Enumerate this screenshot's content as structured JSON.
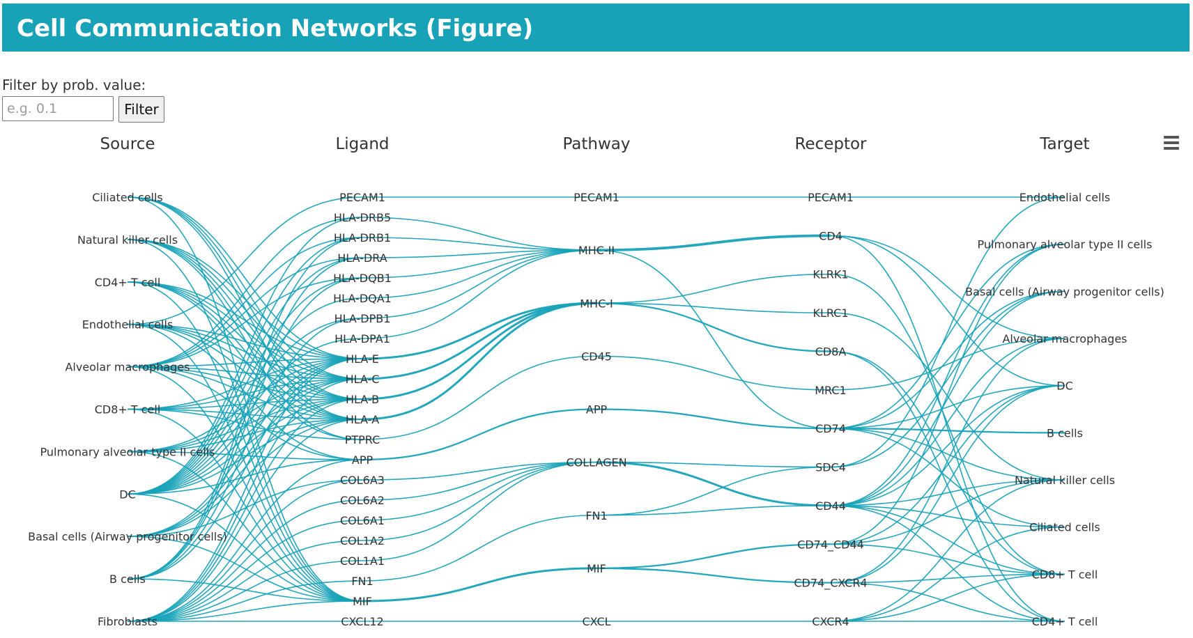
{
  "header": {
    "title": "Cell Communication Networks (Figure)"
  },
  "filter": {
    "label": "Filter by prob. value:",
    "placeholder": "e.g. 0.1",
    "value": "",
    "button_label": "Filter"
  },
  "menu": {
    "icon": "hamburger-menu-icon"
  },
  "colors": {
    "header_bg": "#17a2b8",
    "link": "#17a2b8",
    "text": "#333333"
  },
  "chart_data": {
    "type": "sankey",
    "columns": [
      "Source",
      "Ligand",
      "Pathway",
      "Receptor",
      "Target"
    ],
    "nodes": {
      "Source": [
        "Ciliated cells",
        "Natural killer cells",
        "CD4+ T cell",
        "Endothelial cells",
        "Alveolar macrophages",
        "CD8+ T cell",
        "Pulmonary alveolar type II cells",
        "DC",
        "Basal cells (Airway progenitor cells)",
        "B cells",
        "Fibroblasts"
      ],
      "Ligand": [
        "PECAM1",
        "HLA-DRB5",
        "HLA-DRB1",
        "HLA-DRA",
        "HLA-DQB1",
        "HLA-DQA1",
        "HLA-DPB1",
        "HLA-DPA1",
        "HLA-E",
        "HLA-C",
        "HLA-B",
        "HLA-A",
        "PTPRC",
        "APP",
        "COL6A3",
        "COL6A2",
        "COL6A1",
        "COL1A2",
        "COL1A1",
        "FN1",
        "MIF",
        "CXCL12"
      ],
      "Pathway": [
        "PECAM1",
        "MHC-II",
        "MHC-I",
        "CD45",
        "APP",
        "COLLAGEN",
        "FN1",
        "MIF",
        "CXCL"
      ],
      "Receptor": [
        "PECAM1",
        "CD4",
        "KLRK1",
        "KLRC1",
        "CD8A",
        "MRC1",
        "CD74",
        "SDC4",
        "CD44",
        "CD74_CD44",
        "CD74_CXCR4",
        "CXCR4"
      ],
      "Target": [
        "Endothelial cells",
        "Pulmonary alveolar type II cells",
        "Basal cells (Airway progenitor cells)",
        "Alveolar macrophages",
        "DC",
        "B cells",
        "Natural killer cells",
        "Ciliated cells",
        "CD8+ T cell",
        "CD4+ T cell"
      ]
    },
    "links": [
      [
        "Endothelial cells",
        "PECAM1",
        1
      ],
      [
        "Ciliated cells",
        "HLA-E",
        1
      ],
      [
        "Ciliated cells",
        "HLA-C",
        1
      ],
      [
        "Ciliated cells",
        "HLA-B",
        1
      ],
      [
        "Ciliated cells",
        "HLA-A",
        1
      ],
      [
        "Ciliated cells",
        "MIF",
        1
      ],
      [
        "Natural killer cells",
        "HLA-E",
        1
      ],
      [
        "Natural killer cells",
        "HLA-C",
        1
      ],
      [
        "Natural killer cells",
        "HLA-B",
        1
      ],
      [
        "Natural killer cells",
        "HLA-A",
        1
      ],
      [
        "Natural killer cells",
        "PTPRC",
        1
      ],
      [
        "Natural killer cells",
        "MIF",
        1
      ],
      [
        "CD4+ T cell",
        "HLA-E",
        1
      ],
      [
        "CD4+ T cell",
        "HLA-C",
        1
      ],
      [
        "CD4+ T cell",
        "HLA-B",
        1
      ],
      [
        "CD4+ T cell",
        "HLA-A",
        1
      ],
      [
        "CD4+ T cell",
        "PTPRC",
        1
      ],
      [
        "CD4+ T cell",
        "MIF",
        1
      ],
      [
        "Endothelial cells",
        "HLA-E",
        1
      ],
      [
        "Endothelial cells",
        "HLA-C",
        1
      ],
      [
        "Endothelial cells",
        "HLA-B",
        1
      ],
      [
        "Endothelial cells",
        "HLA-A",
        1
      ],
      [
        "Endothelial cells",
        "MIF",
        1
      ],
      [
        "Endothelial cells",
        "APP",
        1
      ],
      [
        "Alveolar macrophages",
        "HLA-DRB5",
        1
      ],
      [
        "Alveolar macrophages",
        "HLA-DRB1",
        1
      ],
      [
        "Alveolar macrophages",
        "HLA-DRA",
        1
      ],
      [
        "Alveolar macrophages",
        "HLA-DQB1",
        1
      ],
      [
        "Alveolar macrophages",
        "HLA-E",
        1
      ],
      [
        "Alveolar macrophages",
        "HLA-C",
        1
      ],
      [
        "Alveolar macrophages",
        "HLA-B",
        1
      ],
      [
        "Alveolar macrophages",
        "HLA-A",
        1
      ],
      [
        "Alveolar macrophages",
        "APP",
        1
      ],
      [
        "Alveolar macrophages",
        "MIF",
        1
      ],
      [
        "CD8+ T cell",
        "HLA-E",
        1
      ],
      [
        "CD8+ T cell",
        "HLA-C",
        1
      ],
      [
        "CD8+ T cell",
        "HLA-B",
        1
      ],
      [
        "CD8+ T cell",
        "HLA-A",
        1
      ],
      [
        "CD8+ T cell",
        "PTPRC",
        1
      ],
      [
        "CD8+ T cell",
        "MIF",
        1
      ],
      [
        "Pulmonary alveolar type II cells",
        "HLA-E",
        1
      ],
      [
        "Pulmonary alveolar type II cells",
        "HLA-C",
        1
      ],
      [
        "Pulmonary alveolar type II cells",
        "HLA-B",
        1
      ],
      [
        "Pulmonary alveolar type II cells",
        "HLA-A",
        1
      ],
      [
        "Pulmonary alveolar type II cells",
        "APP",
        1
      ],
      [
        "Pulmonary alveolar type II cells",
        "MIF",
        1
      ],
      [
        "DC",
        "HLA-DRB5",
        1
      ],
      [
        "DC",
        "HLA-DRB1",
        1
      ],
      [
        "DC",
        "HLA-DRA",
        1
      ],
      [
        "DC",
        "HLA-DQB1",
        1
      ],
      [
        "DC",
        "HLA-DQA1",
        1
      ],
      [
        "DC",
        "HLA-DPB1",
        1
      ],
      [
        "DC",
        "HLA-DPA1",
        1
      ],
      [
        "DC",
        "HLA-E",
        1
      ],
      [
        "DC",
        "HLA-C",
        1
      ],
      [
        "DC",
        "HLA-B",
        1
      ],
      [
        "DC",
        "HLA-A",
        1
      ],
      [
        "DC",
        "APP",
        1
      ],
      [
        "DC",
        "MIF",
        1
      ],
      [
        "Basal cells (Airway progenitor cells)",
        "HLA-E",
        1
      ],
      [
        "Basal cells (Airway progenitor cells)",
        "HLA-C",
        1
      ],
      [
        "Basal cells (Airway progenitor cells)",
        "HLA-B",
        1
      ],
      [
        "Basal cells (Airway progenitor cells)",
        "HLA-A",
        1
      ],
      [
        "Basal cells (Airway progenitor cells)",
        "MIF",
        1
      ],
      [
        "Basal cells (Airway progenitor cells)",
        "COL6A3",
        1
      ],
      [
        "B cells",
        "HLA-DRB1",
        1
      ],
      [
        "B cells",
        "HLA-DRA",
        1
      ],
      [
        "B cells",
        "HLA-DQB1",
        1
      ],
      [
        "B cells",
        "HLA-DPB1",
        1
      ],
      [
        "B cells",
        "HLA-E",
        1
      ],
      [
        "B cells",
        "MIF",
        1
      ],
      [
        "Fibroblasts",
        "HLA-E",
        1
      ],
      [
        "Fibroblasts",
        "HLA-C",
        1
      ],
      [
        "Fibroblasts",
        "HLA-B",
        1
      ],
      [
        "Fibroblasts",
        "HLA-A",
        1
      ],
      [
        "Fibroblasts",
        "APP",
        1
      ],
      [
        "Fibroblasts",
        "COL6A3",
        1
      ],
      [
        "Fibroblasts",
        "COL6A2",
        1
      ],
      [
        "Fibroblasts",
        "COL6A1",
        1
      ],
      [
        "Fibroblasts",
        "COL1A2",
        1
      ],
      [
        "Fibroblasts",
        "COL1A1",
        1
      ],
      [
        "Fibroblasts",
        "FN1",
        1
      ],
      [
        "Fibroblasts",
        "MIF",
        1
      ],
      [
        "Fibroblasts",
        "CXCL12",
        1
      ],
      [
        "PECAM1",
        "PECAM1",
        1
      ],
      [
        "HLA-DRB5",
        "MHC-II",
        1
      ],
      [
        "HLA-DRB1",
        "MHC-II",
        1
      ],
      [
        "HLA-DRA",
        "MHC-II",
        1
      ],
      [
        "HLA-DQB1",
        "MHC-II",
        1
      ],
      [
        "HLA-DQA1",
        "MHC-II",
        1
      ],
      [
        "HLA-DPB1",
        "MHC-II",
        1
      ],
      [
        "HLA-DPA1",
        "MHC-II",
        1
      ],
      [
        "HLA-E",
        "MHC-I",
        3
      ],
      [
        "HLA-C",
        "MHC-I",
        3
      ],
      [
        "HLA-B",
        "MHC-I",
        3
      ],
      [
        "HLA-A",
        "MHC-I",
        3
      ],
      [
        "PTPRC",
        "CD45",
        1
      ],
      [
        "APP",
        "APP",
        2
      ],
      [
        "COL6A3",
        "COLLAGEN",
        1
      ],
      [
        "COL6A2",
        "COLLAGEN",
        1
      ],
      [
        "COL6A1",
        "COLLAGEN",
        1
      ],
      [
        "COL1A2",
        "COLLAGEN",
        1
      ],
      [
        "COL1A1",
        "COLLAGEN",
        1
      ],
      [
        "FN1",
        "FN1",
        1
      ],
      [
        "MIF",
        "MIF",
        3
      ],
      [
        "CXCL12",
        "CXCL",
        1
      ],
      [
        "PECAM1",
        "PECAM1",
        1
      ],
      [
        "MHC-II",
        "CD4",
        4
      ],
      [
        "MHC-I",
        "KLRK1",
        1
      ],
      [
        "MHC-I",
        "KLRC1",
        1
      ],
      [
        "MHC-I",
        "CD8A",
        2
      ],
      [
        "MHC-II",
        "CD74",
        1
      ],
      [
        "CD45",
        "MRC1",
        1
      ],
      [
        "APP",
        "CD74",
        2
      ],
      [
        "COLLAGEN",
        "SDC4",
        1
      ],
      [
        "COLLAGEN",
        "CD44",
        3
      ],
      [
        "FN1",
        "CD44",
        1
      ],
      [
        "FN1",
        "SDC4",
        1
      ],
      [
        "MIF",
        "CD74_CD44",
        2
      ],
      [
        "MIF",
        "CD74_CXCR4",
        2
      ],
      [
        "CXCL",
        "CXCR4",
        1
      ],
      [
        "PECAM1",
        "Endothelial cells",
        1
      ],
      [
        "CD4",
        "DC",
        1
      ],
      [
        "CD4",
        "Alveolar macrophages",
        1
      ],
      [
        "CD4",
        "CD4+ T cell",
        1
      ],
      [
        "KLRK1",
        "CD8+ T cell",
        1
      ],
      [
        "KLRC1",
        "Natural killer cells",
        1
      ],
      [
        "CD8A",
        "CD8+ T cell",
        1
      ],
      [
        "CD8A",
        "CD4+ T cell",
        1
      ],
      [
        "MRC1",
        "Alveolar macrophages",
        1
      ],
      [
        "CD74",
        "Pulmonary alveolar type II cells",
        1
      ],
      [
        "CD74",
        "Basal cells (Airway progenitor cells)",
        1
      ],
      [
        "CD74",
        "DC",
        1
      ],
      [
        "CD74",
        "B cells",
        2
      ],
      [
        "CD74",
        "Natural killer cells",
        1
      ],
      [
        "CD74",
        "Ciliated cells",
        1
      ],
      [
        "SDC4",
        "Endothelial cells",
        1
      ],
      [
        "SDC4",
        "Basal cells (Airway progenitor cells)",
        1
      ],
      [
        "CD44",
        "Pulmonary alveolar type II cells",
        1
      ],
      [
        "CD44",
        "Basal cells (Airway progenitor cells)",
        1
      ],
      [
        "CD44",
        "Alveolar macrophages",
        1
      ],
      [
        "CD44",
        "DC",
        1
      ],
      [
        "CD44",
        "Natural killer cells",
        1
      ],
      [
        "CD44",
        "Ciliated cells",
        1
      ],
      [
        "CD44",
        "CD8+ T cell",
        1
      ],
      [
        "CD44",
        "CD4+ T cell",
        1
      ],
      [
        "CD74_CD44",
        "Pulmonary alveolar type II cells",
        1
      ],
      [
        "CD74_CD44",
        "DC",
        1
      ],
      [
        "CD74_CD44",
        "CD8+ T cell",
        1
      ],
      [
        "CD74_CD44",
        "Natural killer cells",
        1
      ],
      [
        "CD74_CXCR4",
        "Alveolar macrophages",
        1
      ],
      [
        "CD74_CXCR4",
        "DC",
        1
      ],
      [
        "CD74_CXCR4",
        "CD8+ T cell",
        1
      ],
      [
        "CD74_CXCR4",
        "CD4+ T cell",
        1
      ],
      [
        "CXCR4",
        "CD8+ T cell",
        1
      ],
      [
        "CXCR4",
        "CD4+ T cell",
        1
      ],
      [
        "CXCR4",
        "Natural killer cells",
        1
      ],
      [
        "CXCR4",
        "Ciliated cells",
        1
      ]
    ]
  }
}
